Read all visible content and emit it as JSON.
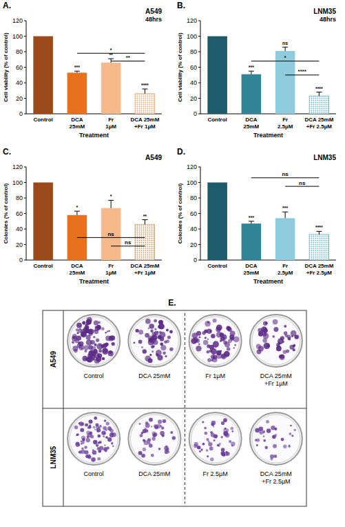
{
  "chart_data": [
    {
      "type": "bar",
      "panel_label": "A.",
      "title": "A549",
      "subtitle": "48hrs",
      "xlabel": "Treatment",
      "ylabel": "Cell viability (% of control)",
      "categories": [
        "Control",
        "DCA 25mM",
        "Fr 1µM",
        "DCA 25mM +Fr 1µM"
      ],
      "values": [
        100,
        53,
        66,
        26
      ],
      "errors": [
        0,
        2,
        5,
        6
      ],
      "colors": [
        "#9c4a1a",
        "#e8721c",
        "#f5b98c",
        "#f0a878"
      ],
      "significance": [
        null,
        "***",
        "**",
        "****"
      ],
      "comparisons": [
        {
          "from": "DCA 25mM",
          "to": "DCA 25mM +Fr 1µM",
          "label": "*",
          "y": 78
        },
        {
          "from": "Fr 1µM",
          "to": "DCA 25mM +Fr 1µM",
          "label": "**",
          "y": 68
        }
      ],
      "ylim": [
        0,
        120
      ],
      "yticks": [
        0,
        20,
        40,
        60,
        80,
        100,
        120
      ]
    },
    {
      "type": "bar",
      "panel_label": "B.",
      "title": "LNM35",
      "subtitle": "48hrs",
      "xlabel": "Treatment",
      "ylabel": "Cell viability (% of control)",
      "categories": [
        "Control",
        "DCA 25mM",
        "Fr 2.5µM",
        "DCA 25mM +Fr 2.5µM"
      ],
      "values": [
        100,
        51,
        81,
        23
      ],
      "errors": [
        0,
        4,
        5,
        5
      ],
      "colors": [
        "#1f5c6b",
        "#2f8496",
        "#8ecbdc",
        "#6fb7c9"
      ],
      "significance": [
        null,
        "***",
        "ns",
        "****"
      ],
      "comparisons": [
        {
          "from": "DCA 25mM",
          "to": "DCA 25mM +Fr 2.5µM",
          "label": "*",
          "y": 68
        },
        {
          "from": "Fr 2.5µM",
          "to": "DCA 25mM +Fr 2.5µM",
          "label": "****",
          "y": 50
        }
      ],
      "ylim": [
        0,
        120
      ],
      "yticks": [
        0,
        20,
        40,
        60,
        80,
        100,
        120
      ]
    },
    {
      "type": "bar",
      "panel_label": "C.",
      "title": "A549",
      "xlabel": "Treatment",
      "ylabel": "Colonies (% of control)",
      "categories": [
        "Control",
        "DCA 25mM",
        "Fr 1µM",
        "DCA 25mM +Fr 1µM"
      ],
      "values": [
        100,
        58,
        67,
        46
      ],
      "errors": [
        0,
        5,
        10,
        6
      ],
      "colors": [
        "#9c4a1a",
        "#e8721c",
        "#f5b98c",
        "#c89a6e"
      ],
      "significance": [
        null,
        "*",
        "*",
        "**"
      ],
      "comparisons": [
        {
          "from": "DCA 25mM",
          "to": "DCA 25mM +Fr 1µM",
          "label": "ns",
          "y": 29
        },
        {
          "from": "Fr 1µM",
          "to": "DCA 25mM +Fr 1µM",
          "label": "ns",
          "y": 18
        }
      ],
      "ylim": [
        0,
        120
      ],
      "yticks": [
        0,
        20,
        40,
        60,
        80,
        100,
        120
      ]
    },
    {
      "type": "bar",
      "panel_label": "D.",
      "title": "LNM35",
      "xlabel": "Treatment",
      "ylabel": "Colonies (% of control)",
      "categories": [
        "Control",
        "DCA 25mM",
        "Fr 2.5µM",
        "DCA 25mM +Fr 2.5µM"
      ],
      "values": [
        100,
        47,
        54,
        33
      ],
      "errors": [
        0,
        3,
        8,
        4
      ],
      "colors": [
        "#1f5c6b",
        "#2f8496",
        "#8ecbdc",
        "#6fb7c9"
      ],
      "significance": [
        null,
        "***",
        "***",
        "****"
      ],
      "comparisons": [
        {
          "from": "DCA 25mM",
          "to": "DCA 25mM +Fr 2.5µM",
          "label": "ns",
          "y": 106
        },
        {
          "from": "Fr 2.5µM",
          "to": "DCA 25mM +Fr 2.5µM",
          "label": "ns",
          "y": 95
        }
      ],
      "ylim": [
        0,
        120
      ],
      "yticks": [
        0,
        20,
        40,
        60,
        80,
        100,
        120
      ]
    }
  ],
  "panel_e": {
    "panel_label": "E.",
    "rows": [
      {
        "label": "A549",
        "plates": [
          "Control",
          "DCA 25mM",
          "Fr 1µM",
          "DCA 25mM +Fr 1µM"
        ]
      },
      {
        "label": "LNM35",
        "plates": [
          "Control",
          "DCA 25mM",
          "Fr 2.5µM",
          "DCA 25mM +Fr 2.5µM"
        ]
      }
    ]
  }
}
